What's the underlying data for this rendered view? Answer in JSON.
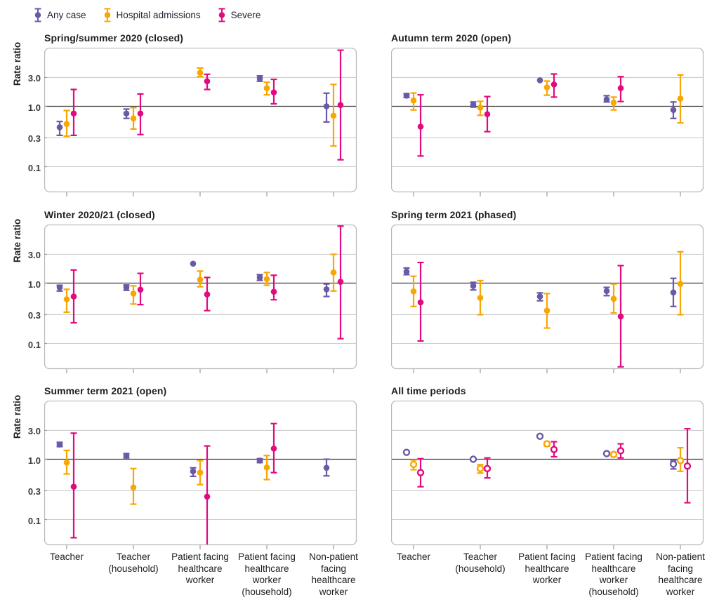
{
  "figure": {
    "y_axis_label": "Rate ratio",
    "y_ticks": [
      "3.0",
      "1.0",
      "0.3",
      "0.1"
    ],
    "category_labels": [
      "Teacher",
      "Teacher\n(household)",
      "Patient facing\nhealthcare\nworker",
      "Patient facing\nhealthcare\nworker\n(household)",
      "Non-patient\nfacing\nhealthcare\nworker"
    ]
  },
  "legend": {
    "items": [
      {
        "label": "Any case",
        "color": "#6a59a5"
      },
      {
        "label": "Hospital admissions",
        "color": "#f8a602"
      },
      {
        "label": "Severe",
        "color": "#e10a7e"
      }
    ]
  },
  "colors": {
    "grid_line": "#cdcdcd",
    "reference_line": "#3a3a3a",
    "panel_border": "#b8b8b8",
    "axis_tick": "#9b9b9b"
  },
  "chart_data": {
    "type": "scatter",
    "subtype": "point-estimates-with-95CI-error-bars",
    "y_scale": "log",
    "ylim": [
      0.037,
      9.2
    ],
    "ylabel": "Rate ratio",
    "y_ticks": [
      3.0,
      1.0,
      0.3,
      0.1
    ],
    "reference_line": 1.0,
    "grid": true,
    "legend_position": "top-left",
    "series_names": [
      "Any case",
      "Hospital admissions",
      "Severe"
    ],
    "categories": [
      "Teacher",
      "Teacher (household)",
      "Patient facing healthcare worker",
      "Patient facing healthcare worker (household)",
      "Non-patient facing healthcare worker"
    ],
    "panels": [
      {
        "title": "Spring/summer 2020 (closed)",
        "marker": "filled",
        "points": [
          [
            {
              "v": 0.45,
              "lo": 0.33,
              "hi": 0.56
            },
            {
              "v": 0.51,
              "lo": 0.32,
              "hi": 0.85
            },
            {
              "v": 0.76,
              "lo": 0.33,
              "hi": 1.9
            }
          ],
          [
            {
              "v": 0.76,
              "lo": 0.63,
              "hi": 0.9
            },
            {
              "v": 0.63,
              "lo": 0.42,
              "hi": 0.95
            },
            {
              "v": 0.76,
              "lo": 0.34,
              "hi": 1.6
            }
          ],
          [
            null,
            {
              "v": 3.6,
              "lo": 3.1,
              "hi": 4.3
            },
            {
              "v": 2.6,
              "lo": 1.9,
              "hi": 3.4
            }
          ],
          [
            {
              "v": 2.9,
              "lo": 2.6,
              "hi": 3.2
            },
            {
              "v": 2.0,
              "lo": 1.55,
              "hi": 2.5
            },
            {
              "v": 1.7,
              "lo": 1.1,
              "hi": 2.8
            }
          ],
          [
            {
              "v": 1.0,
              "lo": 0.55,
              "hi": 1.65
            },
            {
              "v": 0.7,
              "lo": 0.22,
              "hi": 2.3
            },
            {
              "v": 1.05,
              "lo": 0.13,
              "hi": 8.5
            }
          ]
        ]
      },
      {
        "title": "Autumn term 2020 (open)",
        "marker": "filled",
        "points": [
          [
            {
              "v": 1.5,
              "lo": 1.4,
              "hi": 1.62
            },
            {
              "v": 1.25,
              "lo": 0.87,
              "hi": 1.66
            },
            {
              "v": 0.46,
              "lo": 0.15,
              "hi": 1.55
            }
          ],
          [
            {
              "v": 1.06,
              "lo": 0.97,
              "hi": 1.18
            },
            {
              "v": 0.95,
              "lo": 0.71,
              "hi": 1.21
            },
            {
              "v": 0.74,
              "lo": 0.38,
              "hi": 1.45
            }
          ],
          [
            {
              "v": 2.7
            },
            {
              "v": 2.06,
              "lo": 1.53,
              "hi": 2.62
            },
            {
              "v": 2.3,
              "lo": 1.42,
              "hi": 3.43
            }
          ],
          [
            {
              "v": 1.3,
              "lo": 1.18,
              "hi": 1.5
            },
            {
              "v": 1.15,
              "lo": 0.87,
              "hi": 1.42
            },
            {
              "v": 2.0,
              "lo": 1.2,
              "hi": 3.1
            }
          ],
          [
            {
              "v": 0.87,
              "lo": 0.63,
              "hi": 1.18
            },
            {
              "v": 1.34,
              "lo": 0.53,
              "hi": 3.3
            },
            null
          ]
        ]
      },
      {
        "title": "Winter 2020/21 (closed)",
        "marker": "filled",
        "points": [
          [
            {
              "v": 0.85,
              "lo": 0.74,
              "hi": 0.92
            },
            {
              "v": 0.54,
              "lo": 0.33,
              "hi": 0.79
            },
            {
              "v": 0.6,
              "lo": 0.22,
              "hi": 1.65
            }
          ],
          [
            {
              "v": 0.85,
              "lo": 0.76,
              "hi": 0.93
            },
            {
              "v": 0.67,
              "lo": 0.45,
              "hi": 0.9
            },
            {
              "v": 0.78,
              "lo": 0.44,
              "hi": 1.45
            }
          ],
          [
            {
              "v": 2.1
            },
            {
              "v": 1.14,
              "lo": 0.87,
              "hi": 1.58
            },
            {
              "v": 0.65,
              "lo": 0.35,
              "hi": 1.24
            }
          ],
          [
            {
              "v": 1.24,
              "lo": 1.11,
              "hi": 1.38
            },
            {
              "v": 1.17,
              "lo": 0.92,
              "hi": 1.5
            },
            {
              "v": 0.72,
              "lo": 0.53,
              "hi": 1.35
            }
          ],
          [
            {
              "v": 0.79,
              "lo": 0.6,
              "hi": 0.97
            },
            {
              "v": 1.5,
              "lo": 0.74,
              "hi": 3.0
            },
            {
              "v": 1.05,
              "lo": 0.12,
              "hi": 8.8
            }
          ]
        ]
      },
      {
        "title": "Spring term 2021 (phased)",
        "marker": "filled",
        "points": [
          [
            {
              "v": 1.55,
              "lo": 1.38,
              "hi": 1.78
            },
            {
              "v": 0.73,
              "lo": 0.41,
              "hi": 1.3
            },
            {
              "v": 0.48,
              "lo": 0.11,
              "hi": 2.2
            }
          ],
          [
            {
              "v": 0.9,
              "lo": 0.77,
              "hi": 1.03
            },
            {
              "v": 0.57,
              "lo": 0.3,
              "hi": 1.1
            },
            null
          ],
          [
            {
              "v": 0.6,
              "lo": 0.51,
              "hi": 0.69
            },
            {
              "v": 0.35,
              "lo": 0.18,
              "hi": 0.67
            },
            null
          ],
          [
            {
              "v": 0.74,
              "lo": 0.62,
              "hi": 0.85
            },
            {
              "v": 0.55,
              "lo": 0.32,
              "hi": 0.97
            },
            {
              "v": 0.28,
              "lo": 0.041,
              "hi": 1.95
            }
          ],
          [
            {
              "v": 0.7,
              "lo": 0.41,
              "hi": 1.2
            },
            {
              "v": 0.97,
              "lo": 0.3,
              "hi": 3.3
            },
            null
          ]
        ]
      },
      {
        "title": "Summer term 2021 (open)",
        "marker": "filled",
        "points": [
          [
            {
              "v": 1.75,
              "lo": 1.62,
              "hi": 1.9
            },
            {
              "v": 0.88,
              "lo": 0.57,
              "hi": 1.4
            },
            {
              "v": 0.35,
              "lo": 0.05,
              "hi": 2.7
            }
          ],
          [
            {
              "v": 1.14,
              "lo": 1.05,
              "hi": 1.24
            },
            {
              "v": 0.34,
              "lo": 0.18,
              "hi": 0.7
            },
            null
          ],
          [
            {
              "v": 0.63,
              "lo": 0.52,
              "hi": 0.72
            },
            {
              "v": 0.6,
              "lo": 0.38,
              "hi": 0.95
            },
            {
              "v": 0.24,
              "lo": 0.015,
              "hi": 1.66
            }
          ],
          [
            {
              "v": 0.95,
              "lo": 0.88,
              "hi": 1.02
            },
            {
              "v": 0.73,
              "lo": 0.46,
              "hi": 1.15
            },
            {
              "v": 1.5,
              "lo": 0.6,
              "hi": 3.9
            }
          ],
          [
            {
              "v": 0.72,
              "lo": 0.53,
              "hi": 1.0
            },
            null,
            null
          ]
        ]
      },
      {
        "title": "All time periods",
        "marker": "open",
        "points": [
          [
            {
              "v": 1.3
            },
            {
              "v": 0.82,
              "lo": 0.67,
              "hi": 0.97
            },
            {
              "v": 0.6,
              "lo": 0.35,
              "hi": 1.02
            }
          ],
          [
            {
              "v": 1.0
            },
            {
              "v": 0.7,
              "lo": 0.59,
              "hi": 0.81
            },
            {
              "v": 0.7,
              "lo": 0.49,
              "hi": 1.05
            }
          ],
          [
            {
              "v": 2.4
            },
            {
              "v": 1.8,
              "lo": 1.65,
              "hi": 1.95
            },
            {
              "v": 1.45,
              "lo": 1.1,
              "hi": 1.95
            }
          ],
          [
            {
              "v": 1.24
            },
            {
              "v": 1.2,
              "lo": 1.1,
              "hi": 1.3
            },
            {
              "v": 1.38,
              "lo": 1.05,
              "hi": 1.8
            }
          ],
          [
            {
              "v": 0.83,
              "lo": 0.69,
              "hi": 0.95
            },
            {
              "v": 0.95,
              "lo": 0.63,
              "hi": 1.55
            },
            {
              "v": 0.77,
              "lo": 0.19,
              "hi": 3.2
            }
          ]
        ]
      }
    ]
  }
}
